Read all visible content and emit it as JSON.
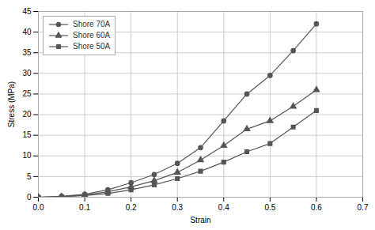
{
  "chart_data": {
    "type": "line",
    "xlabel": "Strain",
    "ylabel": "Stress (MPa)",
    "x": [
      0,
      0.05,
      0.1,
      0.15,
      0.2,
      0.25,
      0.3,
      0.35,
      0.4,
      0.45,
      0.5,
      0.55,
      0.6
    ],
    "series": [
      {
        "name": "Shore 70A",
        "color": "#555555",
        "marker": "circle",
        "values": [
          0,
          0.2,
          0.7,
          1.8,
          3.5,
          5.5,
          8.2,
          12.0,
          18.5,
          25.0,
          29.5,
          35.5,
          42.0
        ]
      },
      {
        "name": "Shore 60A",
        "color": "#555555",
        "marker": "triangle",
        "values": [
          0,
          0.15,
          0.5,
          1.3,
          2.5,
          4.0,
          6.0,
          9.0,
          12.5,
          16.5,
          18.5,
          22.0,
          26.0
        ]
      },
      {
        "name": "Shore 50A",
        "color": "#555555",
        "marker": "square",
        "values": [
          0,
          0.1,
          0.4,
          0.9,
          1.8,
          3.0,
          4.5,
          6.3,
          8.5,
          11.0,
          13.0,
          17.0,
          21.0
        ]
      }
    ],
    "xlim": [
      0,
      0.7
    ],
    "ylim": [
      0,
      45
    ],
    "xticks": [
      {
        "value": 0,
        "label": "0.0"
      },
      0.1,
      0.2,
      0.3,
      0.4,
      0.5,
      0.6,
      0.7
    ],
    "yticks": [
      0,
      5,
      10,
      15,
      20,
      25,
      30,
      35,
      40,
      45
    ],
    "grid": true,
    "legend": "upper left"
  }
}
